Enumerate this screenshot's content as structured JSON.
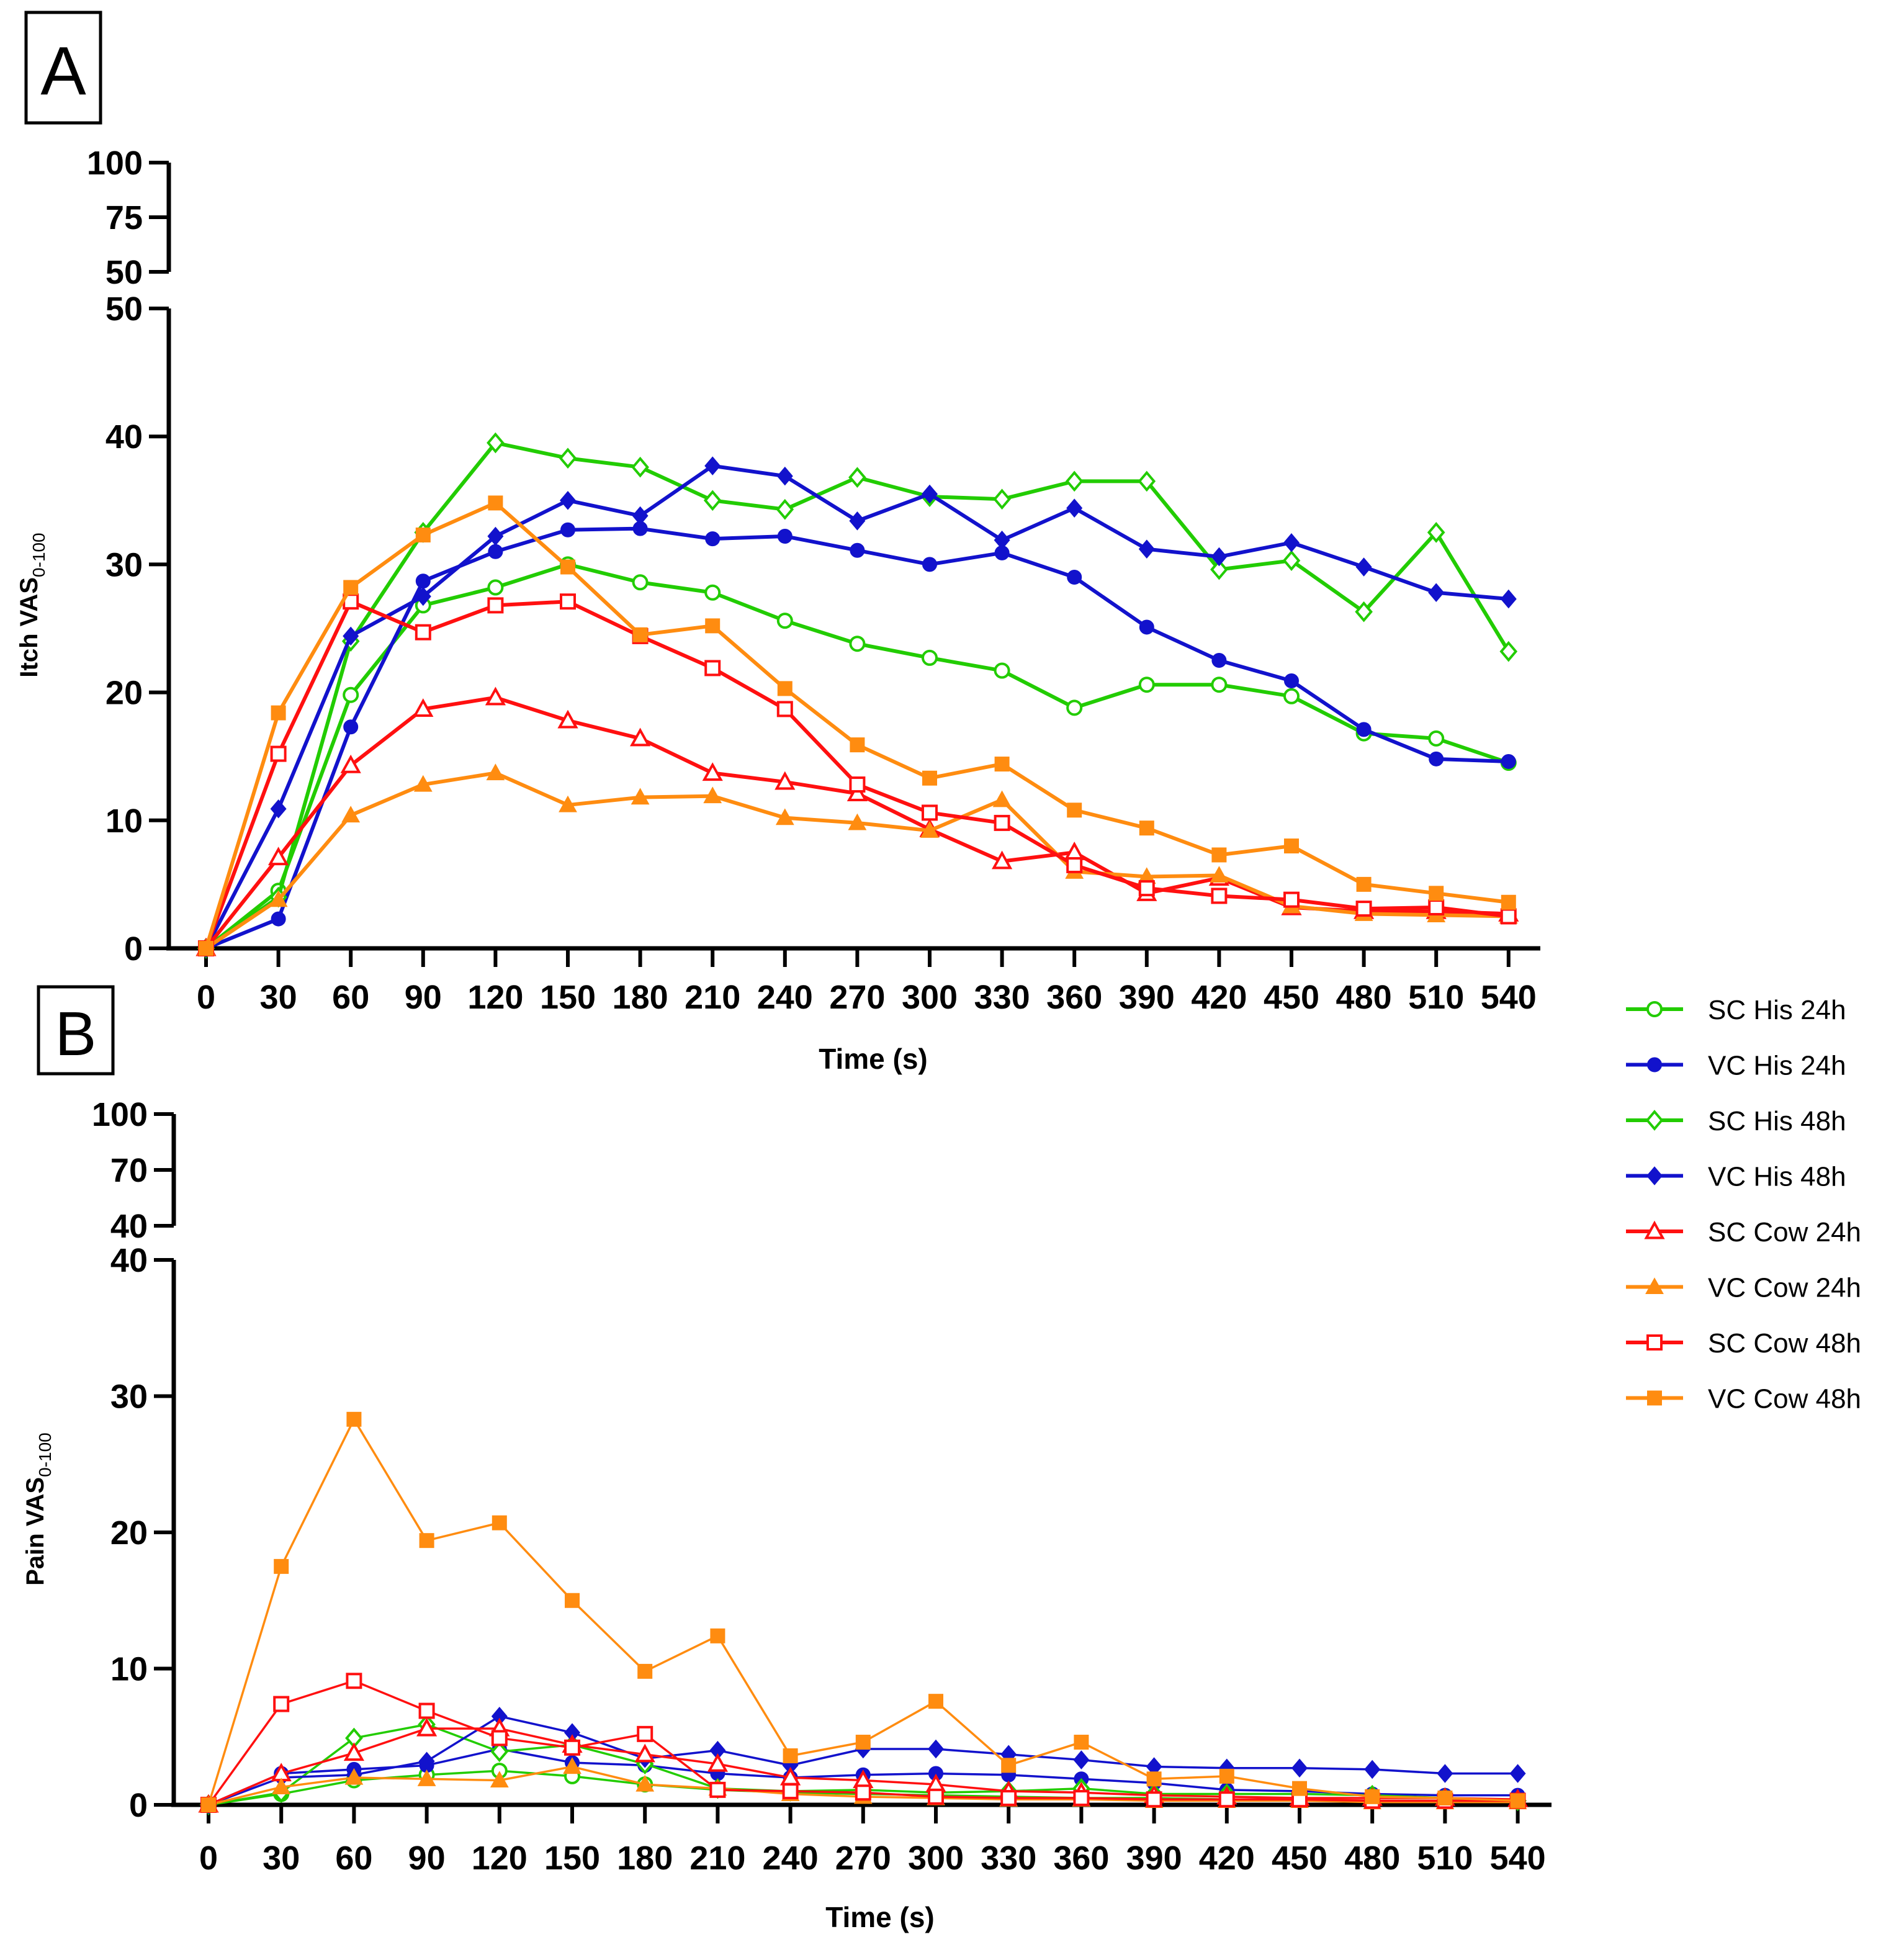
{
  "figure": {
    "panels": [
      "A",
      "B"
    ]
  },
  "colors": {
    "green": "#22cc00",
    "blue": "#1212cc",
    "red": "#ff1010",
    "orange": "#ff8c10",
    "axis": "#000000"
  },
  "legend": {
    "placement": "right",
    "entries": [
      {
        "label": "SC His 24h",
        "color": "#22cc00",
        "marker": "circle-open"
      },
      {
        "label": "VC His 24h",
        "color": "#1212cc",
        "marker": "circle-filled"
      },
      {
        "label": "SC His 48h",
        "color": "#22cc00",
        "marker": "diamond-open"
      },
      {
        "label": "VC His 48h",
        "color": "#1212cc",
        "marker": "diamond-filled"
      },
      {
        "label": "SC Cow 24h",
        "color": "#ff1010",
        "marker": "triangle-open"
      },
      {
        "label": "VC Cow 24h",
        "color": "#ff8c10",
        "marker": "triangle-filled"
      },
      {
        "label": "SC Cow 48h",
        "color": "#ff1010",
        "marker": "square-open"
      },
      {
        "label": "VC Cow 48h",
        "color": "#ff8c10",
        "marker": "square-filled"
      }
    ]
  },
  "chart_data": [
    {
      "panel": "A",
      "type": "line",
      "title": "",
      "xlabel": "Time (s)",
      "ylabel": "Itch VAS",
      "ylabel_sub": "0-100",
      "x": [
        0,
        30,
        60,
        90,
        120,
        150,
        180,
        210,
        240,
        270,
        300,
        330,
        360,
        390,
        420,
        450,
        480,
        510,
        540
      ],
      "xticks": [
        "0",
        "30",
        "60",
        "90",
        "120",
        "150",
        "180",
        "210",
        "240",
        "270",
        "300",
        "330",
        "360",
        "390",
        "420",
        "450",
        "480",
        "510",
        "540"
      ],
      "ylim": [
        0,
        50
      ],
      "yticks": [
        "0",
        "10",
        "20",
        "30",
        "40",
        "50"
      ],
      "ylim_upper": [
        50,
        100
      ],
      "yticks_upper": [
        "50",
        "75",
        "100"
      ],
      "series": [
        {
          "name": "SC His 24h",
          "color": "#22cc00",
          "marker": "circle-open",
          "values": [
            0,
            4.5,
            19.8,
            26.8,
            28.2,
            30,
            28.6,
            27.8,
            25.6,
            23.8,
            22.7,
            21.7,
            18.8,
            20.6,
            20.6,
            19.7,
            16.8,
            16.4,
            14.5
          ]
        },
        {
          "name": "VC His 24h",
          "color": "#1212cc",
          "marker": "circle-filled",
          "values": [
            0,
            2.3,
            17.3,
            28.7,
            31,
            32.7,
            32.8,
            32,
            32.2,
            31.1,
            30,
            30.9,
            29,
            25.1,
            22.5,
            20.9,
            17.1,
            14.8,
            14.6
          ]
        },
        {
          "name": "SC His 48h",
          "color": "#22cc00",
          "marker": "diamond-open",
          "values": [
            0,
            4,
            24,
            32.5,
            39.5,
            38.3,
            37.6,
            35,
            34.3,
            36.8,
            35.3,
            35.1,
            36.5,
            36.5,
            29.6,
            30.3,
            26.3,
            32.5,
            23.2
          ]
        },
        {
          "name": "VC His 48h",
          "color": "#1212cc",
          "marker": "diamond-filled",
          "values": [
            0,
            10.9,
            24.4,
            27.5,
            32.2,
            35,
            33.8,
            37.7,
            36.9,
            33.4,
            35.5,
            31.9,
            34.4,
            31.2,
            30.6,
            31.7,
            29.8,
            27.8,
            27.3
          ]
        },
        {
          "name": "SC Cow 24h",
          "color": "#ff1010",
          "marker": "triangle-open",
          "values": [
            0,
            7.1,
            14.3,
            18.7,
            19.6,
            17.8,
            16.4,
            13.7,
            13,
            12.1,
            9.3,
            6.8,
            7.5,
            4.3,
            5.5,
            3.2,
            2.9,
            2.9,
            2.7
          ]
        },
        {
          "name": "VC Cow 24h",
          "color": "#ff8c10",
          "marker": "triangle-filled",
          "values": [
            0,
            3.8,
            10.4,
            12.8,
            13.7,
            11.2,
            11.8,
            11.9,
            10.2,
            9.8,
            9.2,
            11.6,
            6,
            5.6,
            5.7,
            3.3,
            2.7,
            2.6,
            2.5
          ]
        },
        {
          "name": "SC Cow 48h",
          "color": "#ff1010",
          "marker": "square-open",
          "values": [
            0,
            15.2,
            27.1,
            24.7,
            26.8,
            27.1,
            24.4,
            21.9,
            18.7,
            12.8,
            10.6,
            9.8,
            6.5,
            4.7,
            4.1,
            3.8,
            3.1,
            3.2,
            2.5
          ]
        },
        {
          "name": "VC Cow 48h",
          "color": "#ff8c10",
          "marker": "square-filled",
          "values": [
            0,
            18.4,
            28.2,
            32.3,
            34.8,
            29.8,
            24.5,
            25.2,
            20.3,
            15.9,
            13.3,
            14.4,
            10.8,
            9.4,
            7.3,
            8,
            5,
            4.3,
            3.6
          ]
        }
      ]
    },
    {
      "panel": "B",
      "type": "line",
      "title": "",
      "xlabel": "Time (s)",
      "ylabel": "Pain VAS",
      "ylabel_sub": "0-100",
      "x": [
        0,
        30,
        60,
        90,
        120,
        150,
        180,
        210,
        240,
        270,
        300,
        330,
        360,
        390,
        420,
        450,
        480,
        510,
        540
      ],
      "xticks": [
        "0",
        "30",
        "60",
        "90",
        "120",
        "150",
        "180",
        "210",
        "240",
        "270",
        "300",
        "330",
        "360",
        "390",
        "420",
        "450",
        "480",
        "510",
        "540"
      ],
      "ylim": [
        0,
        40
      ],
      "yticks": [
        "0",
        "10",
        "20",
        "30",
        "40"
      ],
      "ylim_upper": [
        40,
        100
      ],
      "yticks_upper": [
        "40",
        "70",
        "100"
      ],
      "series": [
        {
          "name": "SC His 24h",
          "color": "#22cc00",
          "marker": "circle-open",
          "values": [
            0,
            0.8,
            1.8,
            2.2,
            2.5,
            2.1,
            1.5,
            1.1,
            0.9,
            0.8,
            0.7,
            0.6,
            0.5,
            0.5,
            0.4,
            0.4,
            0.3,
            0.3,
            0.3
          ]
        },
        {
          "name": "VC His 24h",
          "color": "#1212cc",
          "marker": "circle-filled",
          "values": [
            0,
            2.3,
            2.6,
            2.9,
            4.1,
            3.1,
            2.9,
            2.3,
            2,
            2.2,
            2.3,
            2.2,
            1.9,
            1.6,
            1.1,
            1,
            0.8,
            0.7,
            0.7
          ]
        },
        {
          "name": "SC His 48h",
          "color": "#22cc00",
          "marker": "diamond-open",
          "values": [
            0,
            0.9,
            4.9,
            5.9,
            3.9,
            4.4,
            3,
            1.2,
            1,
            1.1,
            0.9,
            1,
            1.2,
            0.8,
            0.8,
            0.8,
            0.7,
            0.5,
            0.3
          ]
        },
        {
          "name": "VC His 48h",
          "color": "#1212cc",
          "marker": "diamond-filled",
          "values": [
            0,
            2,
            2.2,
            3.2,
            6.5,
            5.3,
            3.4,
            4,
            2.9,
            4.1,
            4.1,
            3.7,
            3.3,
            2.8,
            2.7,
            2.7,
            2.6,
            2.3,
            2.3
          ]
        },
        {
          "name": "SC Cow 24h",
          "color": "#ff1010",
          "marker": "triangle-open",
          "values": [
            0,
            2.3,
            3.8,
            5.6,
            5.6,
            4.4,
            3.7,
            3,
            2,
            1.8,
            1.5,
            1,
            0.9,
            0.7,
            0.6,
            0.5,
            0.5,
            0.5,
            0.4
          ]
        },
        {
          "name": "VC Cow 24h",
          "color": "#ff8c10",
          "marker": "triangle-filled",
          "values": [
            0,
            1.3,
            2,
            1.9,
            1.8,
            2.8,
            1.5,
            1.2,
            0.8,
            0.6,
            0.5,
            0.4,
            0.4,
            0.3,
            0.3,
            0.3,
            0.2,
            0.2,
            0.2
          ]
        },
        {
          "name": "SC Cow 48h",
          "color": "#ff1010",
          "marker": "square-open",
          "values": [
            0,
            7.4,
            9.1,
            6.9,
            4.9,
            4.2,
            5.2,
            1.1,
            1,
            0.9,
            0.6,
            0.5,
            0.5,
            0.4,
            0.4,
            0.4,
            0.3,
            0.3,
            0.3
          ]
        },
        {
          "name": "VC Cow 48h",
          "color": "#ff8c10",
          "marker": "square-filled",
          "values": [
            0,
            17.5,
            28.3,
            19.4,
            20.7,
            15,
            9.8,
            12.4,
            3.6,
            4.6,
            7.6,
            2.9,
            4.6,
            1.9,
            2.1,
            1.2,
            0.6,
            0.5,
            0.3
          ]
        }
      ]
    }
  ]
}
